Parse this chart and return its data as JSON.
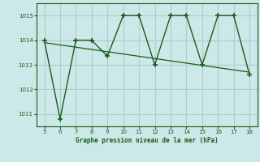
{
  "x": [
    5,
    6,
    7,
    8,
    9,
    10,
    11,
    12,
    13,
    14,
    15,
    16,
    17,
    18
  ],
  "y": [
    1014.0,
    1010.8,
    1014.0,
    1014.0,
    1013.35,
    1015.0,
    1015.0,
    1013.0,
    1015.0,
    1015.0,
    1013.0,
    1015.0,
    1015.0,
    1012.6
  ],
  "trend_x": [
    5,
    18
  ],
  "trend_y": [
    1013.9,
    1012.7
  ],
  "line_color": "#1a5c1a",
  "bg_color": "#cce8e8",
  "grid_color": "#aacece",
  "xlabel": "Graphe pression niveau de la mer (hPa)",
  "ylim": [
    1010.5,
    1015.5
  ],
  "yticks": [
    1011,
    1012,
    1013,
    1014,
    1015
  ],
  "xticks": [
    5,
    6,
    7,
    8,
    9,
    10,
    11,
    12,
    13,
    14,
    15,
    16,
    17,
    18
  ]
}
